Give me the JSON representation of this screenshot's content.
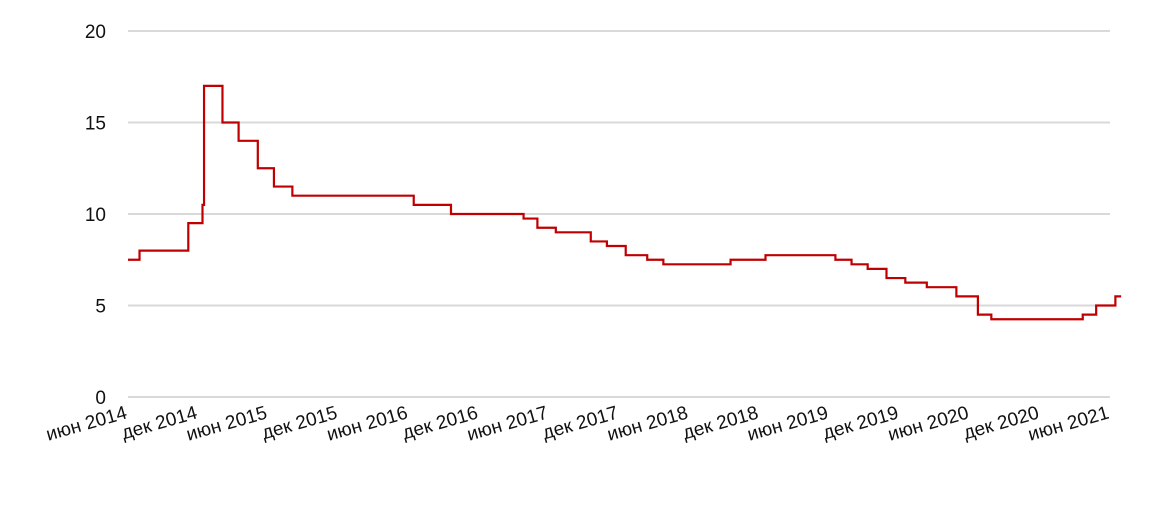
{
  "chart_data": {
    "type": "line",
    "title": "",
    "xlabel": "",
    "ylabel": "",
    "x_range": [
      "2014-06-01",
      "2021-06-01"
    ],
    "ylim": [
      0,
      20
    ],
    "y_ticks": [
      "0",
      "5",
      "10",
      "15",
      "20"
    ],
    "x_ticks": [
      {
        "date": "2014-06-01",
        "label": "июн 2014"
      },
      {
        "date": "2014-12-01",
        "label": "дек 2014"
      },
      {
        "date": "2015-06-01",
        "label": "июн 2015"
      },
      {
        "date": "2015-12-01",
        "label": "дек 2015"
      },
      {
        "date": "2016-06-01",
        "label": "июн 2016"
      },
      {
        "date": "2016-12-01",
        "label": "дек 2016"
      },
      {
        "date": "2017-06-01",
        "label": "июн 2017"
      },
      {
        "date": "2017-12-01",
        "label": "дек 2017"
      },
      {
        "date": "2018-06-01",
        "label": "июн 2018"
      },
      {
        "date": "2018-12-01",
        "label": "дек 2018"
      },
      {
        "date": "2019-06-01",
        "label": "июн 2019"
      },
      {
        "date": "2019-12-01",
        "label": "дек 2019"
      },
      {
        "date": "2020-06-01",
        "label": "июн 2020"
      },
      {
        "date": "2020-12-01",
        "label": "дек 2020"
      },
      {
        "date": "2021-06-01",
        "label": "июн 2021"
      }
    ],
    "grid": true,
    "legend": "none",
    "step": true,
    "series": [
      {
        "color": "#c00000",
        "points": [
          {
            "date": "2014-06-01",
            "value": 7.5
          },
          {
            "date": "2014-07-01",
            "value": 8.0
          },
          {
            "date": "2014-11-05",
            "value": 9.5
          },
          {
            "date": "2014-12-12",
            "value": 10.5
          },
          {
            "date": "2014-12-16",
            "value": 17.0
          },
          {
            "date": "2015-02-02",
            "value": 15.0
          },
          {
            "date": "2015-03-16",
            "value": 14.0
          },
          {
            "date": "2015-05-05",
            "value": 12.5
          },
          {
            "date": "2015-06-16",
            "value": 11.5
          },
          {
            "date": "2015-08-03",
            "value": 11.0
          },
          {
            "date": "2016-06-14",
            "value": 10.5
          },
          {
            "date": "2016-09-19",
            "value": 10.0
          },
          {
            "date": "2017-03-27",
            "value": 9.75
          },
          {
            "date": "2017-05-02",
            "value": 9.25
          },
          {
            "date": "2017-06-19",
            "value": 9.0
          },
          {
            "date": "2017-09-18",
            "value": 8.5
          },
          {
            "date": "2017-10-30",
            "value": 8.25
          },
          {
            "date": "2017-12-18",
            "value": 7.75
          },
          {
            "date": "2018-02-12",
            "value": 7.5
          },
          {
            "date": "2018-03-26",
            "value": 7.25
          },
          {
            "date": "2018-09-17",
            "value": 7.5
          },
          {
            "date": "2018-12-17",
            "value": 7.75
          },
          {
            "date": "2019-06-17",
            "value": 7.5
          },
          {
            "date": "2019-07-29",
            "value": 7.25
          },
          {
            "date": "2019-09-09",
            "value": 7.0
          },
          {
            "date": "2019-10-28",
            "value": 6.5
          },
          {
            "date": "2019-12-16",
            "value": 6.25
          },
          {
            "date": "2020-02-10",
            "value": 6.0
          },
          {
            "date": "2020-04-27",
            "value": 5.5
          },
          {
            "date": "2020-06-22",
            "value": 4.5
          },
          {
            "date": "2020-07-27",
            "value": 4.25
          },
          {
            "date": "2021-03-22",
            "value": 4.5
          },
          {
            "date": "2021-04-26",
            "value": 5.0
          },
          {
            "date": "2021-06-15",
            "value": 5.5
          },
          {
            "date": "2021-06-30",
            "value": 5.5
          }
        ]
      }
    ]
  }
}
